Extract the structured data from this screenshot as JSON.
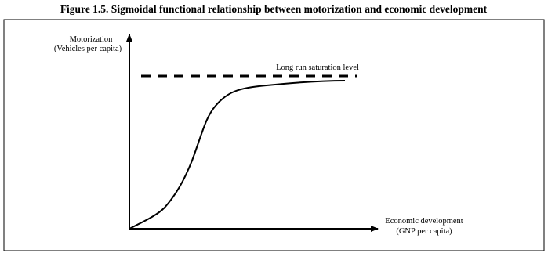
{
  "title": "Figure 1.5. Sigmoidal functional relationship between motorization and economic development",
  "y_axis": {
    "label": "Motorization",
    "unit": "(Vehicles per capita)"
  },
  "x_axis": {
    "label": "Economic development",
    "unit": "(GNP per capita)"
  },
  "annotation": "Long run saturation level"
}
